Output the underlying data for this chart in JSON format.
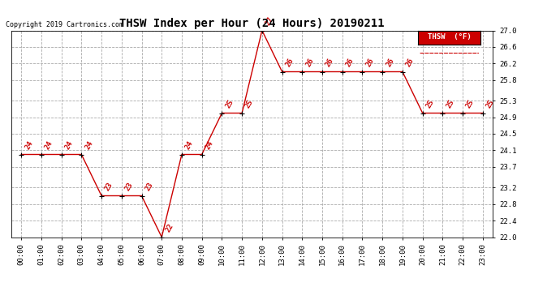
{
  "title": "THSW Index per Hour (24 Hours) 20190211",
  "copyright": "Copyright 2019 Cartronics.com",
  "legend_label": "THSW  (°F)",
  "hours": [
    "00:00",
    "01:00",
    "02:00",
    "03:00",
    "04:00",
    "05:00",
    "06:00",
    "07:00",
    "08:00",
    "09:00",
    "10:00",
    "11:00",
    "12:00",
    "13:00",
    "14:00",
    "15:00",
    "16:00",
    "17:00",
    "18:00",
    "19:00",
    "20:00",
    "21:00",
    "22:00",
    "23:00"
  ],
  "values": [
    24,
    24,
    24,
    24,
    23,
    23,
    23,
    22,
    24,
    24,
    25,
    25,
    27,
    26,
    26,
    26,
    26,
    26,
    26,
    26,
    25,
    25,
    25,
    25
  ],
  "ylim": [
    22.0,
    27.0
  ],
  "yticks": [
    22.0,
    22.4,
    22.8,
    23.2,
    23.7,
    24.1,
    24.5,
    24.9,
    25.3,
    25.8,
    26.2,
    26.6,
    27.0
  ],
  "line_color": "#cc0000",
  "marker_color": "#000000",
  "grid_color": "#aaaaaa",
  "bg_color": "#ffffff",
  "legend_bg": "#cc0000",
  "legend_text_color": "#ffffff",
  "title_fontsize": 10,
  "copyright_fontsize": 6,
  "tick_fontsize": 6.5,
  "label_fontsize": 6.5,
  "fig_width": 6.9,
  "fig_height": 3.75,
  "dpi": 100
}
